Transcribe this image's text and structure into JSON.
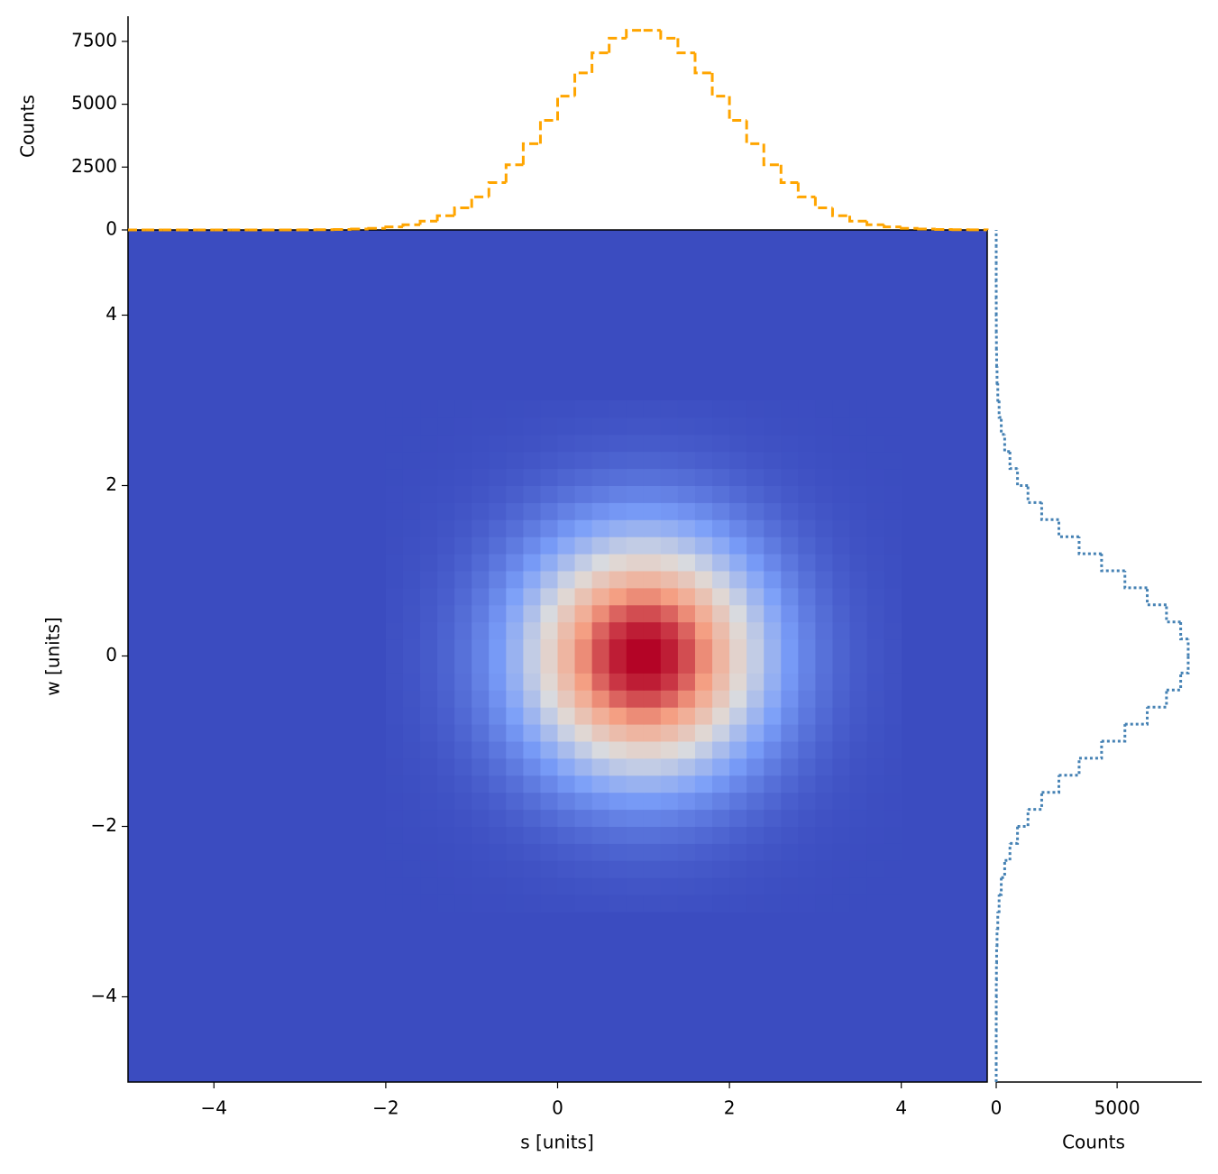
{
  "chart_data": [
    {
      "type": "heatmap",
      "xlabel": "s [units]",
      "ylabel": "w [units]",
      "colormap": "coolwarm",
      "xlim": [
        -5,
        5
      ],
      "ylim": [
        -5,
        5
      ],
      "xticks": [
        {
          "value": -4,
          "label": "−4"
        },
        {
          "value": -2,
          "label": "−2"
        },
        0,
        2,
        4
      ],
      "yticks": [
        {
          "value": -4,
          "label": "−4"
        },
        {
          "value": -2,
          "label": "−2"
        },
        0,
        2,
        4
      ],
      "x_bins": [
        -2,
        -1.8,
        -1.6,
        -1.4,
        -1.2,
        -1,
        -0.8,
        -0.6,
        -0.4,
        -0.2,
        0,
        0.2,
        0.4,
        0.6,
        0.8,
        1,
        1.2,
        1.4,
        1.6,
        1.8,
        2,
        2.2,
        2.4,
        2.6,
        2.8,
        3,
        3.2,
        3.4,
        3.6,
        3.8,
        4
      ],
      "y_bins": [
        -3,
        -2.8,
        -2.6,
        -2.4,
        -2.2,
        -2,
        -1.8,
        -1.6,
        -1.4,
        -1.2,
        -1,
        -0.8,
        -0.6,
        -0.4,
        -0.2,
        0,
        0.2,
        0.4,
        0.6,
        0.8,
        1,
        1.2,
        1.4,
        1.6,
        1.8,
        2,
        2.2,
        2.4,
        2.6,
        2.8,
        3
      ],
      "values": [
        [
          0,
          0,
          0,
          1,
          1,
          2,
          2,
          3,
          4,
          5,
          6,
          7,
          8,
          9,
          9,
          9,
          9,
          8,
          7,
          6,
          5,
          4,
          3,
          2,
          2,
          1,
          1,
          0,
          0,
          0
        ],
        [
          0,
          0,
          1,
          1,
          2,
          3,
          4,
          5,
          7,
          9,
          11,
          13,
          15,
          16,
          17,
          17,
          16,
          15,
          13,
          11,
          9,
          7,
          5,
          4,
          3,
          2,
          1,
          1,
          0,
          0
        ],
        [
          0,
          1,
          1,
          2,
          3,
          5,
          7,
          9,
          12,
          15,
          19,
          22,
          25,
          27,
          28,
          28,
          27,
          25,
          22,
          19,
          15,
          12,
          9,
          7,
          5,
          3,
          2,
          1,
          1,
          0
        ],
        [
          1,
          1,
          2,
          3,
          5,
          7,
          11,
          15,
          19,
          25,
          30,
          35,
          40,
          43,
          45,
          45,
          43,
          40,
          35,
          30,
          25,
          19,
          15,
          11,
          7,
          5,
          3,
          2,
          1,
          1
        ],
        [
          1,
          2,
          3,
          5,
          8,
          12,
          17,
          23,
          30,
          38,
          47,
          55,
          62,
          67,
          70,
          70,
          67,
          62,
          55,
          47,
          38,
          30,
          23,
          17,
          12,
          8,
          5,
          3,
          2,
          1
        ],
        [
          2,
          3,
          5,
          7,
          12,
          17,
          25,
          34,
          45,
          57,
          70,
          82,
          92,
          100,
          104,
          104,
          100,
          92,
          82,
          70,
          57,
          45,
          34,
          25,
          17,
          12,
          7,
          5,
          3,
          2
        ],
        [
          2,
          4,
          7,
          11,
          17,
          25,
          35,
          49,
          64,
          82,
          100,
          117,
          132,
          143,
          149,
          149,
          143,
          132,
          117,
          100,
          82,
          64,
          49,
          35,
          25,
          17,
          11,
          7,
          4,
          2
        ],
        [
          3,
          5,
          9,
          15,
          23,
          34,
          49,
          67,
          89,
          113,
          138,
          162,
          183,
          198,
          206,
          206,
          198,
          183,
          162,
          138,
          113,
          89,
          67,
          49,
          34,
          23,
          15,
          9,
          5,
          3
        ],
        [
          4,
          7,
          12,
          19,
          30,
          45,
          64,
          89,
          118,
          149,
          183,
          214,
          242,
          262,
          272,
          272,
          262,
          242,
          214,
          183,
          149,
          118,
          89,
          64,
          45,
          30,
          19,
          12,
          7,
          4
        ],
        [
          5,
          9,
          15,
          25,
          38,
          57,
          82,
          113,
          149,
          190,
          232,
          272,
          307,
          333,
          346,
          346,
          333,
          307,
          272,
          232,
          190,
          149,
          113,
          82,
          57,
          38,
          25,
          15,
          9,
          5
        ],
        [
          6,
          11,
          19,
          30,
          47,
          70,
          100,
          138,
          183,
          232,
          283,
          333,
          375,
          406,
          423,
          423,
          406,
          375,
          333,
          283,
          232,
          183,
          138,
          100,
          70,
          47,
          30,
          19,
          11,
          6
        ],
        [
          7,
          13,
          22,
          35,
          55,
          82,
          117,
          162,
          214,
          272,
          333,
          390,
          440,
          477,
          496,
          496,
          477,
          440,
          390,
          333,
          272,
          214,
          162,
          117,
          82,
          55,
          35,
          22,
          13,
          7
        ],
        [
          8,
          15,
          25,
          40,
          62,
          92,
          132,
          183,
          242,
          307,
          375,
          440,
          496,
          537,
          559,
          559,
          537,
          496,
          440,
          375,
          307,
          242,
          183,
          132,
          92,
          62,
          40,
          25,
          15,
          8
        ],
        [
          9,
          16,
          27,
          43,
          67,
          100,
          143,
          198,
          262,
          333,
          406,
          477,
          537,
          582,
          606,
          606,
          582,
          537,
          477,
          406,
          333,
          262,
          198,
          143,
          100,
          67,
          43,
          27,
          16,
          9
        ],
        [
          9,
          17,
          28,
          45,
          70,
          104,
          149,
          206,
          272,
          346,
          423,
          496,
          559,
          606,
          631,
          631,
          606,
          559,
          496,
          423,
          346,
          272,
          206,
          149,
          104,
          70,
          45,
          28,
          17,
          9
        ],
        [
          9,
          17,
          28,
          45,
          70,
          104,
          149,
          206,
          272,
          346,
          423,
          496,
          559,
          606,
          631,
          631,
          606,
          559,
          496,
          423,
          346,
          272,
          206,
          149,
          104,
          70,
          45,
          28,
          17,
          9
        ],
        [
          9,
          16,
          27,
          43,
          67,
          100,
          143,
          198,
          262,
          333,
          406,
          477,
          537,
          582,
          606,
          606,
          582,
          537,
          477,
          406,
          333,
          262,
          198,
          143,
          100,
          67,
          43,
          27,
          16,
          9
        ],
        [
          8,
          15,
          25,
          40,
          62,
          92,
          132,
          183,
          242,
          307,
          375,
          440,
          496,
          537,
          559,
          559,
          537,
          496,
          440,
          375,
          307,
          242,
          183,
          132,
          92,
          62,
          40,
          25,
          15,
          8
        ],
        [
          7,
          13,
          22,
          35,
          55,
          82,
          117,
          162,
          214,
          272,
          333,
          390,
          440,
          477,
          496,
          496,
          477,
          440,
          390,
          333,
          272,
          214,
          162,
          117,
          82,
          55,
          35,
          22,
          13,
          7
        ],
        [
          6,
          11,
          19,
          30,
          47,
          70,
          100,
          138,
          183,
          232,
          283,
          333,
          375,
          406,
          423,
          423,
          406,
          375,
          333,
          283,
          232,
          183,
          138,
          100,
          70,
          47,
          30,
          19,
          11,
          6
        ],
        [
          5,
          9,
          15,
          25,
          38,
          57,
          82,
          113,
          149,
          190,
          232,
          272,
          307,
          333,
          346,
          346,
          333,
          307,
          272,
          232,
          190,
          149,
          113,
          82,
          57,
          38,
          25,
          15,
          9,
          5
        ],
        [
          4,
          7,
          12,
          19,
          30,
          45,
          64,
          89,
          118,
          149,
          183,
          214,
          242,
          262,
          272,
          272,
          262,
          242,
          214,
          183,
          149,
          118,
          89,
          64,
          45,
          30,
          19,
          12,
          7,
          4
        ],
        [
          3,
          5,
          9,
          15,
          23,
          34,
          49,
          67,
          89,
          113,
          138,
          162,
          183,
          198,
          206,
          206,
          198,
          183,
          162,
          138,
          113,
          89,
          67,
          49,
          34,
          23,
          15,
          9,
          5,
          3
        ],
        [
          2,
          4,
          7,
          11,
          17,
          25,
          35,
          49,
          64,
          82,
          100,
          117,
          132,
          143,
          149,
          149,
          143,
          132,
          117,
          100,
          82,
          64,
          49,
          35,
          25,
          17,
          11,
          7,
          4,
          2
        ],
        [
          2,
          3,
          5,
          7,
          12,
          17,
          25,
          34,
          45,
          57,
          70,
          82,
          92,
          100,
          104,
          104,
          100,
          92,
          82,
          70,
          57,
          45,
          34,
          25,
          17,
          12,
          7,
          5,
          3,
          2
        ],
        [
          1,
          2,
          3,
          5,
          8,
          12,
          17,
          23,
          30,
          38,
          47,
          55,
          62,
          67,
          70,
          70,
          67,
          62,
          55,
          47,
          38,
          30,
          23,
          17,
          12,
          8,
          5,
          3,
          2,
          1
        ],
        [
          1,
          1,
          2,
          3,
          5,
          7,
          11,
          15,
          19,
          25,
          30,
          35,
          40,
          43,
          45,
          45,
          43,
          40,
          35,
          30,
          25,
          19,
          15,
          11,
          7,
          5,
          3,
          2,
          1,
          1
        ],
        [
          0,
          1,
          1,
          2,
          3,
          5,
          7,
          9,
          12,
          15,
          19,
          22,
          25,
          27,
          28,
          28,
          27,
          25,
          22,
          19,
          15,
          12,
          9,
          7,
          5,
          3,
          2,
          1,
          1,
          0
        ],
        [
          0,
          0,
          1,
          1,
          2,
          3,
          4,
          5,
          7,
          9,
          11,
          13,
          15,
          16,
          17,
          17,
          16,
          15,
          13,
          11,
          9,
          7,
          5,
          4,
          3,
          2,
          1,
          1,
          0,
          0
        ],
        [
          0,
          0,
          0,
          1,
          1,
          2,
          2,
          3,
          4,
          5,
          6,
          7,
          8,
          9,
          9,
          9,
          9,
          8,
          7,
          6,
          5,
          4,
          3,
          2,
          2,
          1,
          1,
          0,
          0,
          0
        ]
      ]
    },
    {
      "type": "histogram",
      "orientation": "vertical",
      "ylabel": "Counts",
      "color": "orange",
      "linestyle": "dashed",
      "ylim": [
        0,
        8500
      ],
      "yticks": [
        0,
        2500,
        5000,
        7500
      ],
      "bins": [
        -5,
        -4.8,
        -4.6,
        -4.4,
        -4.2,
        -4,
        -3.8,
        -3.6,
        -3.4,
        -3.2,
        -3,
        -2.8,
        -2.6,
        -2.4,
        -2.2,
        -2,
        -1.8,
        -1.6,
        -1.4,
        -1.2,
        -1,
        -0.8,
        -0.6,
        -0.4,
        -0.2,
        0,
        0.2,
        0.4,
        0.6,
        0.8,
        1,
        1.2,
        1.4,
        1.6,
        1.8,
        2,
        2.2,
        2.4,
        2.6,
        2.8,
        3,
        3.2,
        3.4,
        3.6,
        3.8,
        4,
        4.2,
        4.4,
        4.6,
        4.8,
        5
      ],
      "values": [
        0,
        0,
        0,
        0,
        0,
        0,
        0,
        0,
        1,
        2,
        4,
        9,
        17,
        34,
        65,
        119,
        208,
        350,
        567,
        880,
        1313,
        1881,
        2591,
        3428,
        4357,
        5322,
        6245,
        7041,
        7628,
        7939,
        7939,
        7628,
        7041,
        6245,
        5322,
        4357,
        3428,
        2591,
        1881,
        1313,
        880,
        567,
        350,
        208,
        119,
        65,
        34,
        17,
        9,
        4
      ]
    },
    {
      "type": "histogram",
      "orientation": "horizontal",
      "xlabel": "Counts",
      "color": "steelblue",
      "linestyle": "dotted",
      "xlim": [
        0,
        8500
      ],
      "xticks": [
        0,
        5000
      ],
      "bins": [
        -5,
        -4.8,
        -4.6,
        -4.4,
        -4.2,
        -4,
        -3.8,
        -3.6,
        -3.4,
        -3.2,
        -3,
        -2.8,
        -2.6,
        -2.4,
        -2.2,
        -2,
        -1.8,
        -1.6,
        -1.4,
        -1.2,
        -1,
        -0.8,
        -0.6,
        -0.4,
        -0.2,
        0,
        0.2,
        0.4,
        0.6,
        0.8,
        1,
        1.2,
        1.4,
        1.6,
        1.8,
        2,
        2.2,
        2.4,
        2.6,
        2.8,
        3,
        3.2,
        3.4,
        3.6,
        3.8,
        4,
        4.2,
        4.4,
        4.6,
        4.8,
        5
      ],
      "values": [
        0,
        0,
        0,
        1,
        2,
        4,
        9,
        17,
        34,
        65,
        119,
        208,
        350,
        567,
        880,
        1313,
        1881,
        2591,
        3428,
        4357,
        5322,
        6245,
        7041,
        7628,
        7939,
        7939,
        7628,
        7041,
        6245,
        5322,
        4357,
        3428,
        2591,
        1881,
        1313,
        880,
        567,
        350,
        208,
        119,
        65,
        34,
        17,
        9,
        4,
        2,
        1,
        0,
        0,
        0
      ]
    }
  ]
}
